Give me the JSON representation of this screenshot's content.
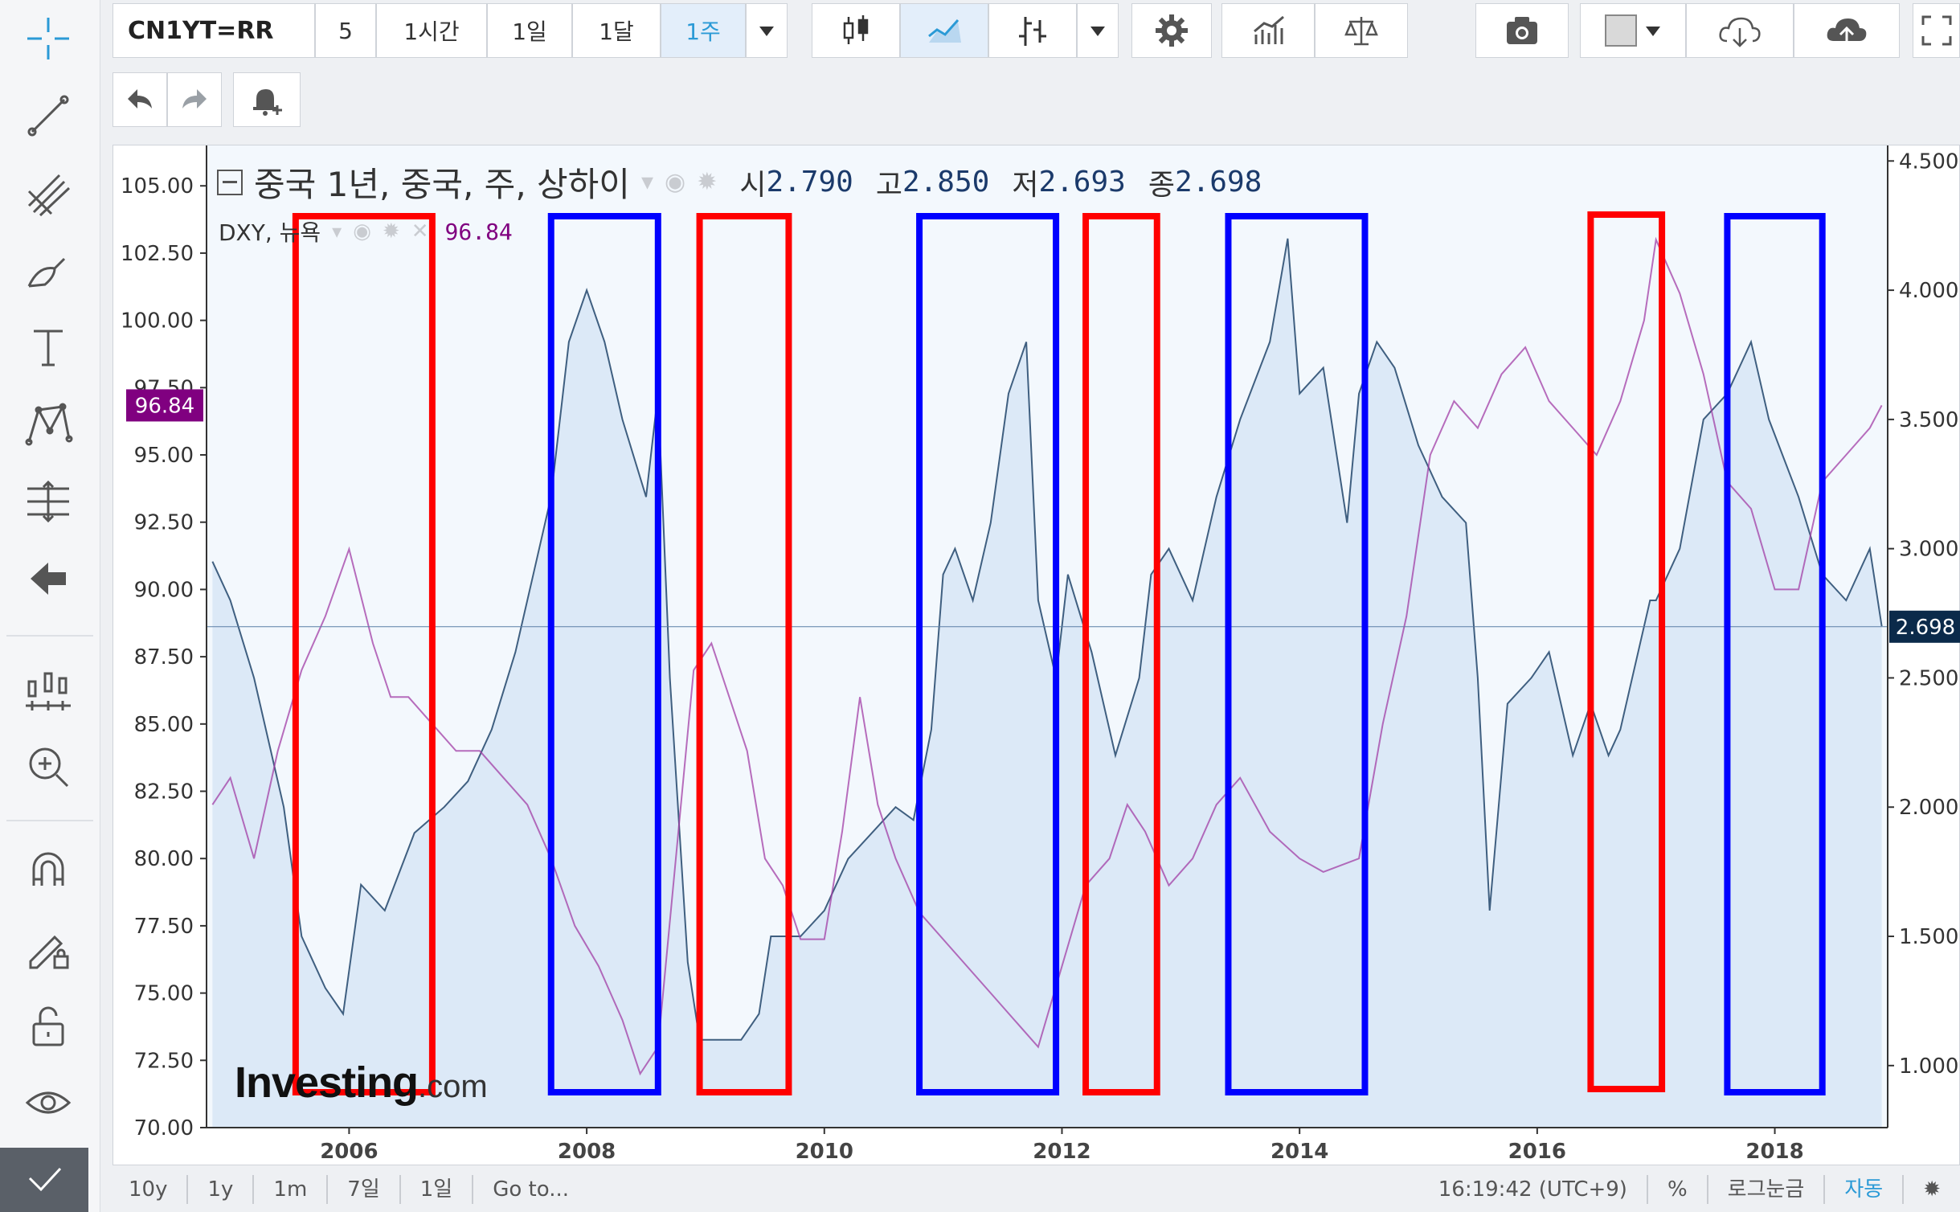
{
  "header": {
    "symbol": "CN1YT=RR",
    "intervals": [
      "5",
      "1시간",
      "1일",
      "1달",
      "1주"
    ],
    "active_interval": "1주"
  },
  "legend": {
    "title": "중국 1년, 중국, 주, 상하이",
    "open_label": "시",
    "open": "2.790",
    "high_label": "고",
    "high": "2.850",
    "low_label": "저",
    "low": "2.693",
    "close_label": "종",
    "close": "2.698",
    "overlay_name": "DXY, 뉴욕",
    "overlay_value": "96.84"
  },
  "badges": {
    "left_value": "96.84",
    "right_value": "2.698"
  },
  "logo": {
    "big": "Investing",
    "small": ".com"
  },
  "bottom_bar": {
    "ranges": [
      "10y",
      "1y",
      "1m",
      "7일",
      "1일",
      "Go to..."
    ],
    "time": "16:19:42 (UTC+9)",
    "percent": "%",
    "log_scale": "로그눈금",
    "auto": "자동"
  },
  "chart_data": {
    "type": "area",
    "x_ticks": [
      "2006",
      "2008",
      "2010",
      "2012",
      "2014",
      "2016",
      "2018"
    ],
    "y_left_ticks": [
      "70.00",
      "72.50",
      "75.00",
      "77.50",
      "80.00",
      "82.50",
      "85.00",
      "87.50",
      "90.00",
      "92.50",
      "95.00",
      "97.50",
      "100.00",
      "102.50",
      "105.00"
    ],
    "y_right_ticks": [
      "1.000",
      "1.500",
      "2.000",
      "2.500",
      "3.000",
      "3.500",
      "4.000",
      "4.500"
    ],
    "y_left_range": [
      70,
      106.5
    ],
    "y_right_range": [
      0.76,
      4.56
    ],
    "x_range": [
      2004.8,
      2018.95
    ],
    "grid": false,
    "colors": {
      "area_fill": "#dce9f7",
      "area_line": "#3f5f80",
      "dxy_line": "#a23da6",
      "red_box": "#ff0000",
      "blue_box": "#0000ff",
      "badge_left": "#800080",
      "badge_right": "#0b2a4a"
    },
    "series": [
      {
        "name": "중국 1년",
        "axis": "right",
        "x": [
          2004.85,
          2005.0,
          2005.2,
          2005.45,
          2005.6,
          2005.8,
          2005.95,
          2006.1,
          2006.3,
          2006.55,
          2006.8,
          2007.0,
          2007.2,
          2007.4,
          2007.55,
          2007.7,
          2007.85,
          2008.0,
          2008.15,
          2008.3,
          2008.5,
          2008.6,
          2008.7,
          2008.85,
          2008.95,
          2009.1,
          2009.3,
          2009.45,
          2009.55,
          2009.65,
          2009.8,
          2010.0,
          2010.2,
          2010.4,
          2010.6,
          2010.75,
          2010.9,
          2011.0,
          2011.1,
          2011.25,
          2011.4,
          2011.55,
          2011.7,
          2011.8,
          2011.95,
          2012.05,
          2012.25,
          2012.45,
          2012.65,
          2012.75,
          2012.9,
          2013.1,
          2013.3,
          2013.5,
          2013.75,
          2013.9,
          2014.0,
          2014.2,
          2014.4,
          2014.5,
          2014.65,
          2014.8,
          2015.0,
          2015.2,
          2015.4,
          2015.5,
          2015.6,
          2015.75,
          2015.95,
          2016.1,
          2016.3,
          2016.45,
          2016.6,
          2016.7,
          2016.85,
          2016.95,
          2017.0,
          2017.2,
          2017.4,
          2017.6,
          2017.8,
          2017.95,
          2018.2,
          2018.4,
          2018.6,
          2018.8,
          2018.9
        ],
        "values": [
          2.95,
          2.8,
          2.5,
          2.0,
          1.5,
          1.3,
          1.2,
          1.7,
          1.6,
          1.9,
          2.0,
          2.1,
          2.3,
          2.6,
          2.9,
          3.2,
          3.8,
          4.0,
          3.8,
          3.5,
          3.2,
          3.6,
          2.5,
          1.4,
          1.1,
          1.1,
          1.1,
          1.2,
          1.5,
          1.5,
          1.5,
          1.6,
          1.8,
          1.9,
          2.0,
          1.95,
          2.3,
          2.9,
          3.0,
          2.8,
          3.1,
          3.6,
          3.8,
          2.8,
          2.5,
          2.9,
          2.6,
          2.2,
          2.5,
          2.9,
          3.0,
          2.8,
          3.2,
          3.5,
          3.8,
          4.2,
          3.6,
          3.7,
          3.1,
          3.6,
          3.8,
          3.7,
          3.4,
          3.2,
          3.1,
          2.5,
          1.6,
          2.4,
          2.5,
          2.6,
          2.2,
          2.4,
          2.2,
          2.3,
          2.6,
          2.8,
          2.8,
          3.0,
          3.5,
          3.6,
          3.8,
          3.5,
          3.2,
          2.9,
          2.8,
          3.0,
          2.7
        ]
      },
      {
        "name": "DXY, 뉴욕",
        "axis": "left",
        "x": [
          2004.85,
          2005.0,
          2005.2,
          2005.4,
          2005.6,
          2005.8,
          2006.0,
          2006.2,
          2006.35,
          2006.5,
          2006.7,
          2006.9,
          2007.1,
          2007.3,
          2007.5,
          2007.7,
          2007.9,
          2008.1,
          2008.3,
          2008.45,
          2008.6,
          2008.75,
          2008.9,
          2009.05,
          2009.2,
          2009.35,
          2009.5,
          2009.65,
          2009.8,
          2010.0,
          2010.15,
          2010.3,
          2010.45,
          2010.6,
          2010.8,
          2011.0,
          2011.2,
          2011.4,
          2011.6,
          2011.8,
          2012.0,
          2012.2,
          2012.4,
          2012.55,
          2012.7,
          2012.9,
          2013.1,
          2013.3,
          2013.5,
          2013.75,
          2014.0,
          2014.2,
          2014.5,
          2014.7,
          2014.9,
          2015.1,
          2015.3,
          2015.5,
          2015.7,
          2015.9,
          2016.1,
          2016.3,
          2016.5,
          2016.7,
          2016.9,
          2017.0,
          2017.2,
          2017.4,
          2017.6,
          2017.8,
          2018.0,
          2018.2,
          2018.4,
          2018.6,
          2018.8,
          2018.9
        ],
        "values": [
          82,
          83,
          80,
          84,
          87,
          89,
          91.5,
          88,
          86,
          86,
          85,
          84,
          84,
          83,
          82,
          80,
          77.5,
          76,
          74,
          72,
          73,
          80,
          87,
          88,
          86,
          84,
          80,
          79,
          77,
          77,
          81,
          86,
          82,
          80,
          78,
          77,
          76,
          75,
          74,
          73,
          76,
          79,
          80,
          82,
          81,
          79,
          80,
          82,
          83,
          81,
          80,
          79.5,
          80,
          85,
          89,
          95,
          97,
          96,
          98,
          99,
          97,
          96,
          95,
          97,
          100,
          103,
          101,
          98,
          94,
          93,
          90,
          90,
          94,
          95,
          96,
          96.84
        ]
      }
    ],
    "annotations": [
      {
        "color": "red",
        "x_from": 2005.55,
        "x_to": 2006.7
      },
      {
        "color": "blue",
        "x_from": 2007.7,
        "x_to": 2008.6
      },
      {
        "color": "red",
        "x_from": 2008.95,
        "x_to": 2009.7
      },
      {
        "color": "blue",
        "x_from": 2010.8,
        "x_to": 2011.95
      },
      {
        "color": "red",
        "x_from": 2012.2,
        "x_to": 2012.8
      },
      {
        "color": "blue",
        "x_from": 2013.4,
        "x_to": 2014.55
      },
      {
        "color": "red",
        "x_from": 2016.45,
        "x_to": 2017.05
      },
      {
        "color": "blue",
        "x_from": 2017.6,
        "x_to": 2018.4
      }
    ]
  }
}
